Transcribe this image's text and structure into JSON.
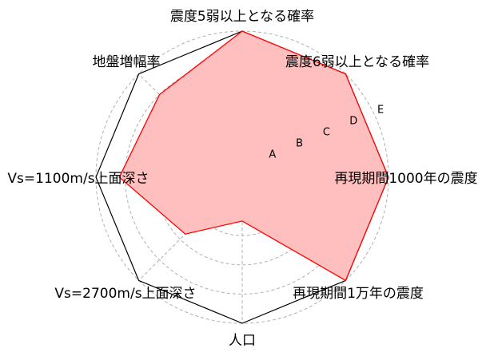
{
  "chart_data": {
    "type": "radar",
    "axes": [
      "震度5弱以上となる確率",
      "震度6弱以上となる確率",
      "再現期間1000年の震度",
      "再現期間1万年の震度",
      "人口",
      "Vs=2700m/s上面深さ",
      "Vs=1100m/s上面深さ",
      "地盤増幅率"
    ],
    "ring_labels": [
      "A",
      "B",
      "C",
      "D",
      "E"
    ],
    "rlim": [
      0,
      5
    ],
    "values": [
      5,
      5,
      5,
      5,
      1.5,
      2.75,
      4.2,
      4.0
    ],
    "grid": true,
    "fill_color": "#ffbfbf",
    "line_color": "#ff0000",
    "frame_color": "#000000",
    "grid_color": "#b0b0b0"
  }
}
